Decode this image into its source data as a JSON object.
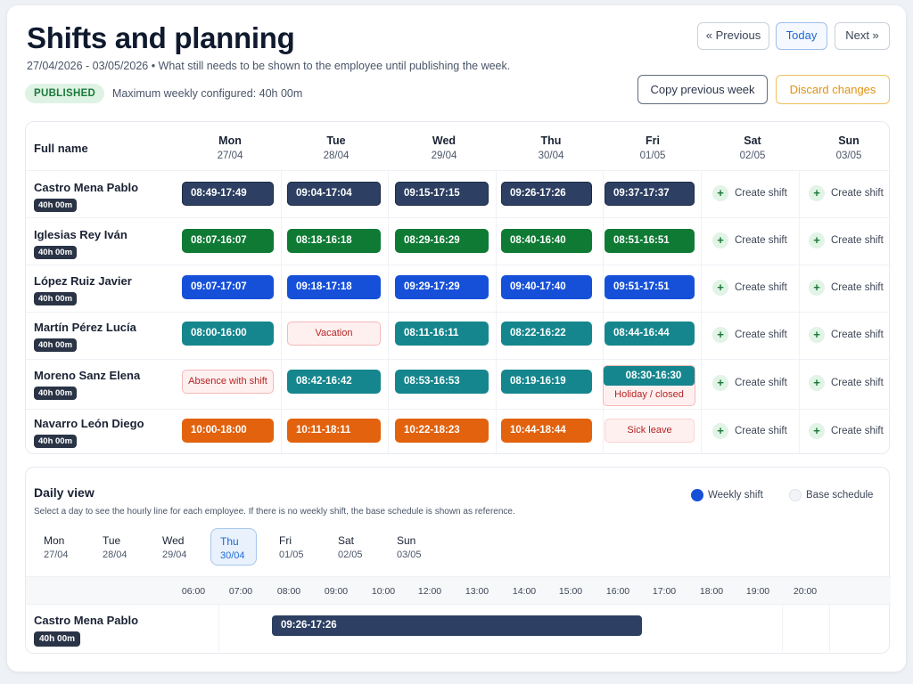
{
  "header": {
    "title": "Shifts and planning",
    "subtitle": "27/04/2026 - 03/05/2026 • What still needs to be shown to the employee until publishing the week.",
    "status_badge": "PUBLISHED",
    "max_weekly": "Maximum weekly configured: 40h 00m",
    "prev_label": "« Previous",
    "today_label": "Today",
    "next_label": "Next »",
    "copy_label": "Copy previous week",
    "discard_label": "Discard changes"
  },
  "grid": {
    "name_header": "Full name",
    "days": [
      {
        "day": "Mon",
        "date": "27/04"
      },
      {
        "day": "Tue",
        "date": "28/04"
      },
      {
        "day": "Wed",
        "date": "29/04"
      },
      {
        "day": "Thu",
        "date": "30/04"
      },
      {
        "day": "Fri",
        "date": "01/05"
      },
      {
        "day": "Sat",
        "date": "02/05"
      },
      {
        "day": "Sun",
        "date": "03/05"
      }
    ],
    "create_label": "Create shift",
    "employees": [
      {
        "name": "Castro Mena Pablo",
        "hours": "40h 00m",
        "shifts": [
          "08:49-17:49",
          "09:04-17:04",
          "09:15-17:15",
          "09:26-17:26",
          "09:37-17:37"
        ]
      },
      {
        "name": "Iglesias Rey Iván",
        "hours": "40h 00m",
        "shifts": [
          "08:07-16:07",
          "08:18-16:18",
          "08:29-16:29",
          "08:40-16:40",
          "08:51-16:51"
        ]
      },
      {
        "name": "López Ruiz Javier",
        "hours": "40h 00m",
        "shifts": [
          "09:07-17:07",
          "09:18-17:18",
          "09:29-17:29",
          "09:40-17:40",
          "09:51-17:51"
        ]
      },
      {
        "name": "Martín Pérez Lucía",
        "hours": "40h 00m",
        "shifts": [
          "08:00-16:00",
          "Vacation",
          "08:11-16:11",
          "08:22-16:22",
          "08:44-16:44"
        ]
      },
      {
        "name": "Moreno Sanz Elena",
        "hours": "40h 00m",
        "shifts": [
          "Absence with shift",
          "08:42-16:42",
          "08:53-16:53",
          "08:19-16:19",
          "08:30-16:30"
        ],
        "fri_extra": "Holiday / closed"
      },
      {
        "name": "Navarro León Diego",
        "hours": "40h 00m",
        "shifts": [
          "10:00-18:00",
          "10:11-18:11",
          "10:22-18:23",
          "10:44-18:44",
          "Sick leave"
        ]
      }
    ],
    "row_colors": {
      "navy": "#2d3f62",
      "green": "#0f7a34",
      "blue": "#1650d9",
      "teal": "#15868d",
      "orange": "#e2620e"
    }
  },
  "daily": {
    "title": "Daily view",
    "subtitle": "Select a day to see the hourly line for each employee. If there is no weekly shift, the base schedule is shown as reference.",
    "legend_weekly": "Weekly shift",
    "legend_base": "Base schedule",
    "selected_day": "Thu",
    "hours": [
      "06:00",
      "07:00",
      "08:00",
      "09:00",
      "10:00",
      "12:00",
      "13:00",
      "14:00",
      "15:00",
      "16:00",
      "17:00",
      "18:00",
      "19:00",
      "20:00"
    ],
    "employee": {
      "name": "Castro Mena Pablo",
      "hours": "40h 00m",
      "shift": "09:26-17:26"
    }
  }
}
